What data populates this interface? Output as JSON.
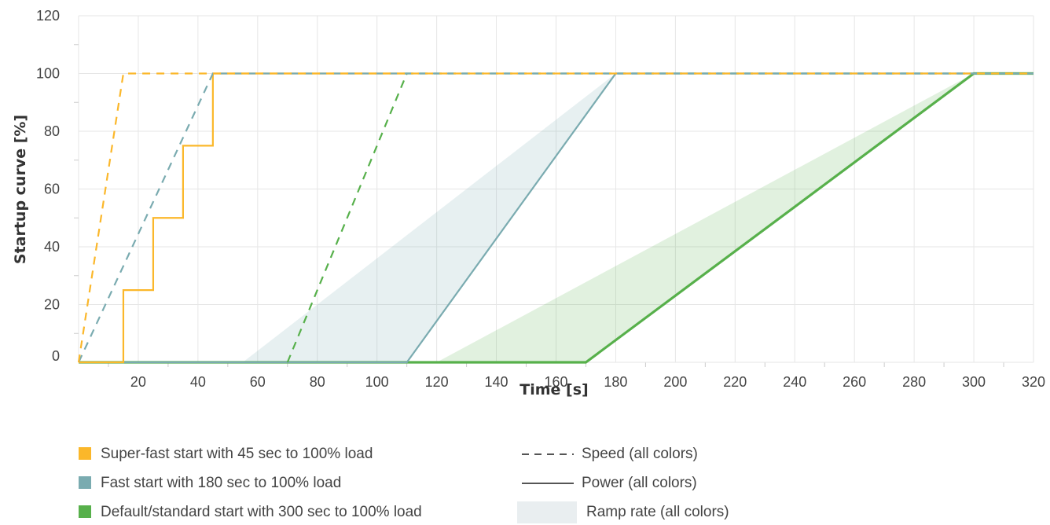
{
  "chart_data": {
    "type": "line",
    "xlabel": "Time [s]",
    "ylabel": "Startup curve [%]",
    "xlim": [
      0,
      320
    ],
    "ylim": [
      0,
      120
    ],
    "x_ticks": [
      20,
      40,
      60,
      80,
      100,
      120,
      140,
      160,
      180,
      200,
      220,
      240,
      260,
      280,
      300,
      320
    ],
    "y_ticks": [
      0,
      20,
      40,
      60,
      80,
      100,
      120
    ],
    "grid": true,
    "series": [
      {
        "key": "super_fast",
        "color": "#fbb72a",
        "speed": {
          "x": [
            0,
            15,
            320
          ],
          "y": [
            0,
            100,
            100
          ]
        },
        "power": {
          "x": [
            0,
            15,
            15,
            25,
            25,
            35,
            35,
            45,
            45,
            110
          ],
          "y": [
            0,
            0,
            25,
            25,
            50,
            50,
            75,
            75,
            100,
            100
          ]
        }
      },
      {
        "key": "fast",
        "color": "#7aabb0",
        "speed": {
          "x": [
            0,
            45,
            320
          ],
          "y": [
            0,
            100,
            100
          ]
        },
        "power": {
          "x": [
            0,
            110,
            180,
            300
          ],
          "y": [
            0,
            0,
            100,
            100
          ]
        },
        "ramp": {
          "x": [
            55,
            180,
            110
          ],
          "y": [
            0,
            100,
            0
          ]
        }
      },
      {
        "key": "default",
        "color": "#57b04b",
        "speed": {
          "x": [
            70,
            110,
            320
          ],
          "y": [
            0,
            100,
            100
          ]
        },
        "power": {
          "x": [
            0,
            170,
            300,
            320
          ],
          "y": [
            0,
            0,
            100,
            100
          ]
        },
        "ramp": {
          "x": [
            120,
            300,
            170
          ],
          "y": [
            0,
            100,
            0
          ]
        }
      }
    ],
    "legend": {
      "placement": "bottom",
      "colors": [
        {
          "label": "Super-fast start with 45 sec to 100% load",
          "color": "#fbb72a"
        },
        {
          "label": "Fast start with 180 sec to 100% load",
          "color": "#7aabb0"
        },
        {
          "label": "Default/standard start with 300 sec to 100% load",
          "color": "#57b04b"
        }
      ],
      "styles": [
        {
          "label": "Speed (all colors)",
          "style": "dashed"
        },
        {
          "label": "Power (all colors)",
          "style": "solid"
        },
        {
          "label": "Ramp rate (all colors)",
          "style": "area"
        }
      ]
    }
  }
}
